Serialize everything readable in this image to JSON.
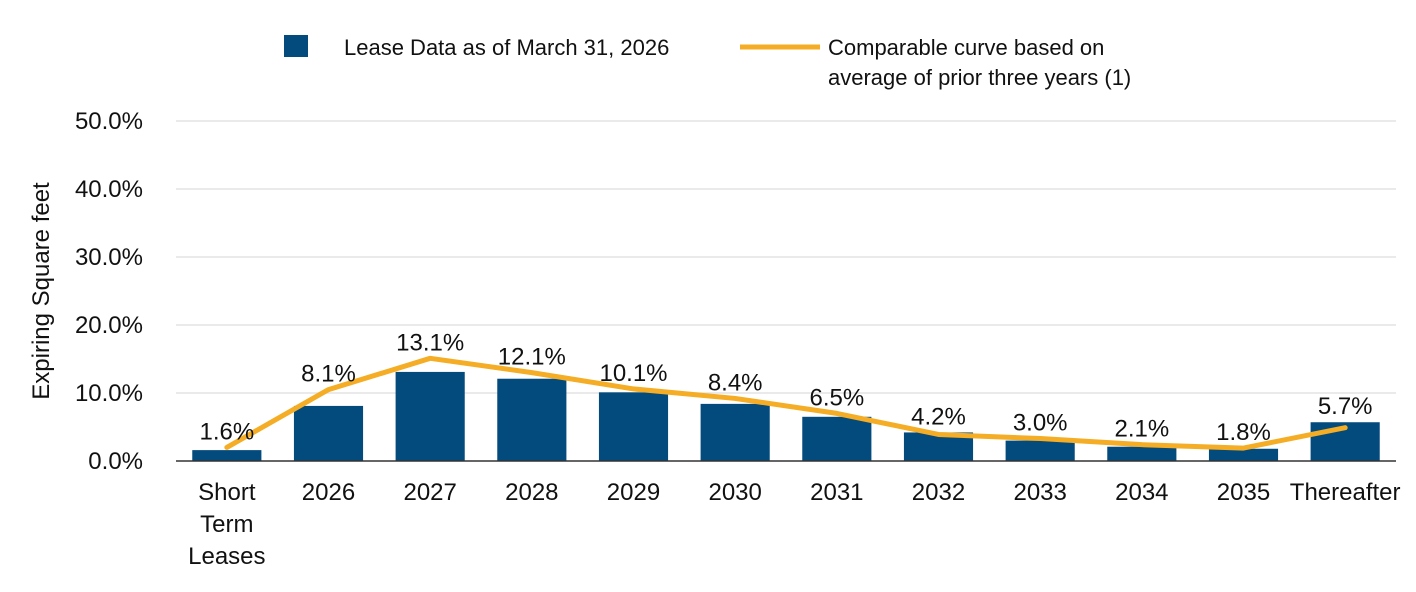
{
  "chart_data": {
    "type": "bar",
    "ylabel": "Expiring Square feet",
    "ylim": [
      0,
      50
    ],
    "yticks": [
      "0.0%",
      "10.0%",
      "20.0%",
      "30.0%",
      "40.0%",
      "50.0%"
    ],
    "grid": true,
    "legend_position": "top",
    "categories": [
      [
        "Short",
        "Term",
        "Leases"
      ],
      [
        "2026"
      ],
      [
        "2027"
      ],
      [
        "2028"
      ],
      [
        "2029"
      ],
      [
        "2030"
      ],
      [
        "2031"
      ],
      [
        "2032"
      ],
      [
        "2033"
      ],
      [
        "2034"
      ],
      [
        "2035"
      ],
      [
        "Thereafter"
      ]
    ],
    "series": [
      {
        "name": "Lease Data as of March 31, 2026",
        "type": "bar",
        "color": "#034a7d",
        "values": [
          1.6,
          8.1,
          13.1,
          12.1,
          10.1,
          8.4,
          6.5,
          4.2,
          3.0,
          2.1,
          1.8,
          5.7
        ],
        "labels": [
          "1.6%",
          "8.1%",
          "13.1%",
          "12.1%",
          "10.1%",
          "8.4%",
          "6.5%",
          "4.2%",
          "3.0%",
          "2.1%",
          "1.8%",
          "5.7%"
        ]
      },
      {
        "name": [
          "Comparable curve based on",
          "average of prior three years (1)"
        ],
        "type": "line",
        "color": "#f4ad24",
        "values": [
          2.0,
          10.5,
          15.1,
          13.0,
          10.6,
          9.2,
          7.0,
          3.9,
          3.3,
          2.4,
          1.9,
          4.9
        ]
      }
    ]
  }
}
